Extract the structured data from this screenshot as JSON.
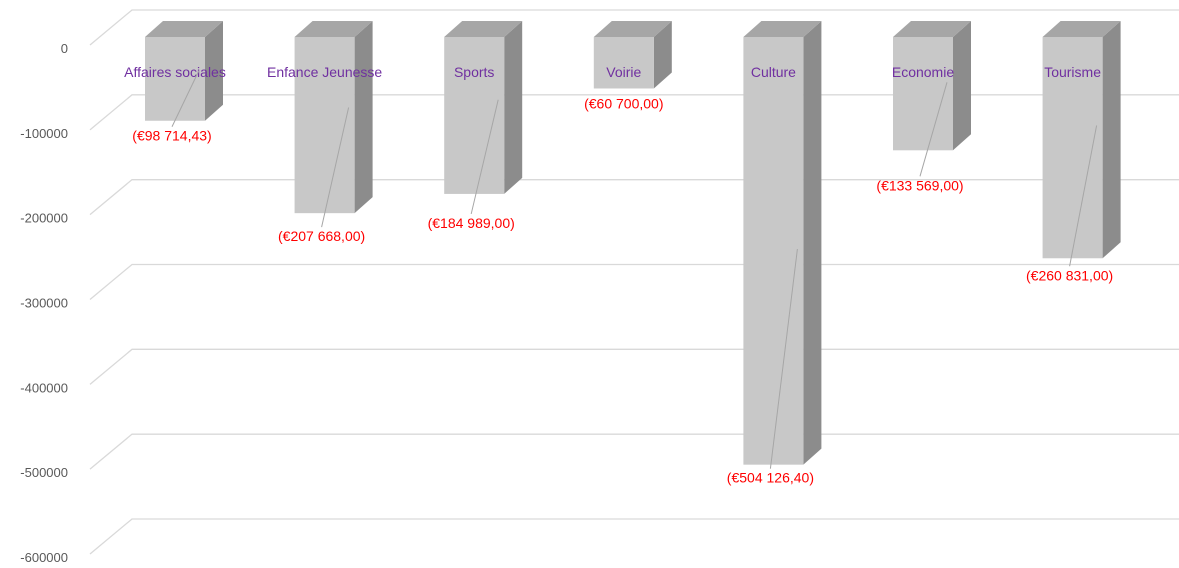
{
  "chart_data": {
    "type": "bar",
    "categories": [
      "Affaires sociales",
      "Enfance Jeunesse",
      "Sports",
      "Voirie",
      "Culture",
      "Economie",
      "Tourisme"
    ],
    "values": [
      -98714.43,
      -207668.0,
      -184989.0,
      -60700.0,
      -504126.4,
      -133569.0,
      -260831.0
    ],
    "data_labels": [
      "(€98 714,43)",
      "(€207 668,00)",
      "(€184 989,00)",
      "(€60 700,00)",
      "(€504 126,40)",
      "(€133 569,00)",
      "(€260 831,00)"
    ],
    "yticks": [
      "0",
      "-100000",
      "-200000",
      "-300000",
      "-400000",
      "-500000",
      "-600000"
    ],
    "ylim": [
      -600000,
      0
    ],
    "grid": true,
    "colors": {
      "bar_front": "#c8c8c8",
      "bar_side": "#8c8c8c",
      "bar_top": "#a6a6a6",
      "category_text": "#7030a0",
      "data_label_text": "#ff0000",
      "gridline": "#d9d9d9"
    }
  }
}
